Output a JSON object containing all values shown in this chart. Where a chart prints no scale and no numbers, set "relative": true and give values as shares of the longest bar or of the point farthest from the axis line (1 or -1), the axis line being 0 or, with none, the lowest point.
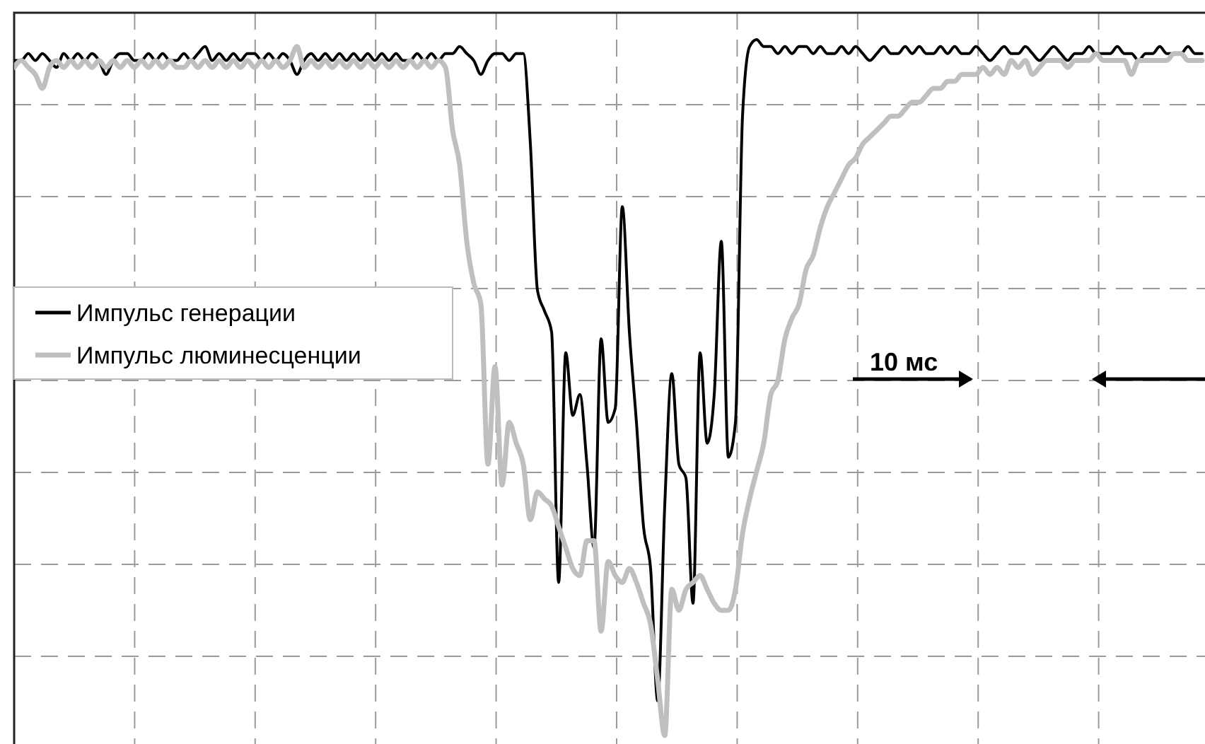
{
  "chart_data": {
    "type": "line",
    "relative": true,
    "grid": true,
    "legend": "left",
    "line_style": "solid",
    "annotations": [
      "10 мс"
    ],
    "categories": [
      null,
      null,
      null,
      null,
      null,
      null,
      null,
      null,
      null,
      null,
      null,
      null,
      null,
      null,
      null,
      null,
      null,
      null,
      null,
      null,
      null,
      null,
      null,
      null,
      null,
      null,
      null,
      null,
      null,
      null,
      null,
      null,
      null,
      null,
      null,
      null,
      null,
      null,
      null,
      null,
      null,
      null,
      null,
      null,
      null,
      null,
      null,
      null,
      null,
      null,
      null,
      null,
      null,
      null,
      null,
      null,
      null,
      null,
      null,
      null,
      null,
      null,
      null,
      null,
      null,
      null,
      null,
      null,
      null,
      null,
      null,
      null,
      null,
      null,
      null,
      null,
      null,
      null,
      null,
      null,
      null,
      null,
      null,
      null,
      null,
      null,
      null,
      null,
      null,
      null,
      null,
      null,
      null,
      null,
      null,
      null,
      null,
      null,
      null,
      null,
      null,
      null,
      null,
      null,
      null,
      null,
      null,
      null,
      null,
      null,
      null,
      null,
      null,
      null,
      null,
      null,
      null,
      null,
      null,
      null,
      null,
      null,
      null,
      null,
      null,
      null,
      null,
      null,
      null,
      null,
      null,
      null,
      null,
      null,
      null,
      null,
      null,
      null,
      null,
      null,
      null,
      null,
      null,
      null,
      null,
      null,
      null,
      null,
      null,
      null,
      null,
      null,
      null,
      null,
      null,
      null,
      null,
      null,
      null,
      null,
      null,
      null,
      null,
      null,
      null,
      null,
      null,
      null,
      null
    ],
    "series": [
      {
        "name": "Импульс генерации",
        "color": "#000000",
        "values": [
          0.97,
          0.97,
          0.98,
          0.97,
          0.98,
          0.97,
          0.96,
          0.98,
          0.97,
          0.98,
          0.97,
          0.98,
          0.97,
          0.95,
          0.97,
          0.98,
          0.98,
          0.97,
          0.97,
          0.98,
          0.97,
          0.98,
          0.97,
          0.97,
          0.98,
          0.97,
          0.98,
          0.99,
          0.97,
          0.98,
          0.97,
          0.98,
          0.97,
          0.98,
          0.98,
          0.97,
          0.98,
          0.97,
          0.98,
          0.97,
          0.95,
          0.97,
          0.98,
          0.97,
          0.98,
          0.97,
          0.98,
          0.97,
          0.98,
          0.97,
          0.98,
          0.97,
          0.98,
          0.97,
          0.98,
          0.97,
          0.97,
          0.98,
          0.97,
          0.98,
          0.97,
          0.98,
          0.98,
          0.99,
          0.98,
          0.97,
          0.95,
          0.97,
          0.98,
          0.98,
          0.97,
          0.98,
          0.98,
          0.85,
          0.64,
          0.61,
          0.58,
          0.22,
          0.55,
          0.46,
          0.49,
          0.39,
          0.27,
          0.57,
          0.45,
          0.47,
          0.76,
          0.58,
          0.45,
          0.3,
          0.24,
          0.05,
          0.33,
          0.52,
          0.39,
          0.37,
          0.19,
          0.55,
          0.42,
          0.49,
          0.71,
          0.4,
          0.45,
          0.89,
          0.99,
          1.0,
          0.99,
          0.99,
          0.98,
          0.99,
          0.98,
          0.99,
          0.99,
          0.98,
          0.99,
          0.98,
          0.98,
          0.99,
          0.98,
          0.99,
          0.98,
          0.97,
          0.98,
          0.99,
          0.98,
          0.98,
          0.99,
          0.98,
          0.99,
          0.98,
          0.98,
          0.99,
          0.98,
          0.99,
          0.98,
          0.98,
          0.99,
          0.98,
          0.97,
          0.98,
          0.99,
          0.98,
          0.98,
          0.99,
          0.98,
          0.97,
          0.98,
          0.99,
          0.98,
          0.97,
          0.98,
          0.98,
          0.99,
          0.98,
          0.98,
          0.98,
          0.99,
          0.98,
          0.98,
          0.97,
          0.98,
          0.98,
          0.99,
          0.98,
          0.98,
          0.98,
          0.99,
          0.98,
          0.98
        ]
      },
      {
        "name": "Импульс люминесценции",
        "color": "#bfbfbf",
        "values": [
          0.96,
          0.97,
          0.96,
          0.95,
          0.93,
          0.96,
          0.97,
          0.96,
          0.97,
          0.96,
          0.97,
          0.96,
          0.97,
          0.96,
          0.97,
          0.96,
          0.97,
          0.96,
          0.97,
          0.96,
          0.97,
          0.96,
          0.97,
          0.96,
          0.96,
          0.97,
          0.96,
          0.97,
          0.96,
          0.97,
          0.96,
          0.97,
          0.96,
          0.97,
          0.96,
          0.97,
          0.96,
          0.97,
          0.96,
          0.97,
          0.99,
          0.96,
          0.97,
          0.96,
          0.97,
          0.96,
          0.97,
          0.96,
          0.97,
          0.96,
          0.97,
          0.96,
          0.97,
          0.96,
          0.97,
          0.96,
          0.97,
          0.96,
          0.97,
          0.96,
          0.97,
          0.96,
          0.87,
          0.82,
          0.71,
          0.65,
          0.62,
          0.39,
          0.53,
          0.36,
          0.45,
          0.42,
          0.39,
          0.31,
          0.35,
          0.34,
          0.33,
          0.3,
          0.27,
          0.24,
          0.23,
          0.28,
          0.28,
          0.15,
          0.25,
          0.23,
          0.22,
          0.24,
          0.22,
          0.19,
          0.16,
          0.08,
          0.0,
          0.21,
          0.18,
          0.21,
          0.22,
          0.23,
          0.21,
          0.19,
          0.18,
          0.18,
          0.21,
          0.29,
          0.34,
          0.38,
          0.42,
          0.49,
          0.51,
          0.57,
          0.6,
          0.62,
          0.67,
          0.69,
          0.73,
          0.76,
          0.78,
          0.8,
          0.82,
          0.83,
          0.85,
          0.86,
          0.87,
          0.88,
          0.89,
          0.89,
          0.9,
          0.91,
          0.91,
          0.92,
          0.93,
          0.93,
          0.94,
          0.94,
          0.95,
          0.95,
          0.95,
          0.96,
          0.95,
          0.96,
          0.95,
          0.97,
          0.96,
          0.97,
          0.95,
          0.96,
          0.97,
          0.97,
          0.97,
          0.96,
          0.97,
          0.97,
          0.97,
          0.98,
          0.97,
          0.97,
          0.97,
          0.97,
          0.95,
          0.97,
          0.97,
          0.97,
          0.97,
          0.97,
          0.98,
          0.98,
          0.97,
          0.97,
          0.97
        ]
      }
    ]
  }
}
